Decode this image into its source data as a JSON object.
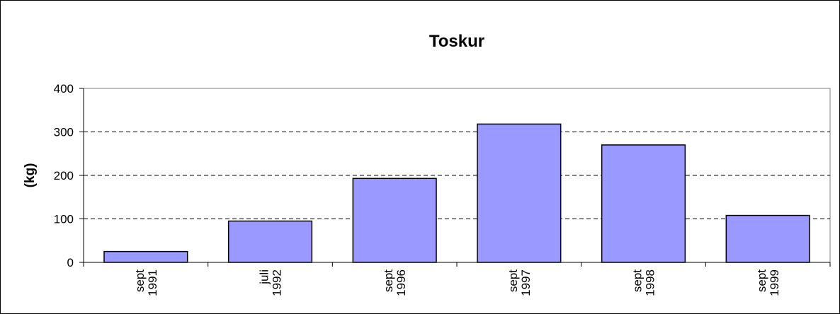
{
  "chart_data": {
    "type": "bar",
    "title": "Toskur",
    "y_label": "(kg)",
    "categories": [
      "sept 1991",
      "juli 1992",
      "sept 1996",
      "sept 1997",
      "sept 1998",
      "sept 1999"
    ],
    "values": [
      25,
      95,
      193,
      318,
      270,
      108
    ],
    "color": "#9999ff",
    "ylim": [
      0,
      400
    ],
    "yticks": [
      0,
      100,
      200,
      300,
      400
    ],
    "grid": true
  }
}
